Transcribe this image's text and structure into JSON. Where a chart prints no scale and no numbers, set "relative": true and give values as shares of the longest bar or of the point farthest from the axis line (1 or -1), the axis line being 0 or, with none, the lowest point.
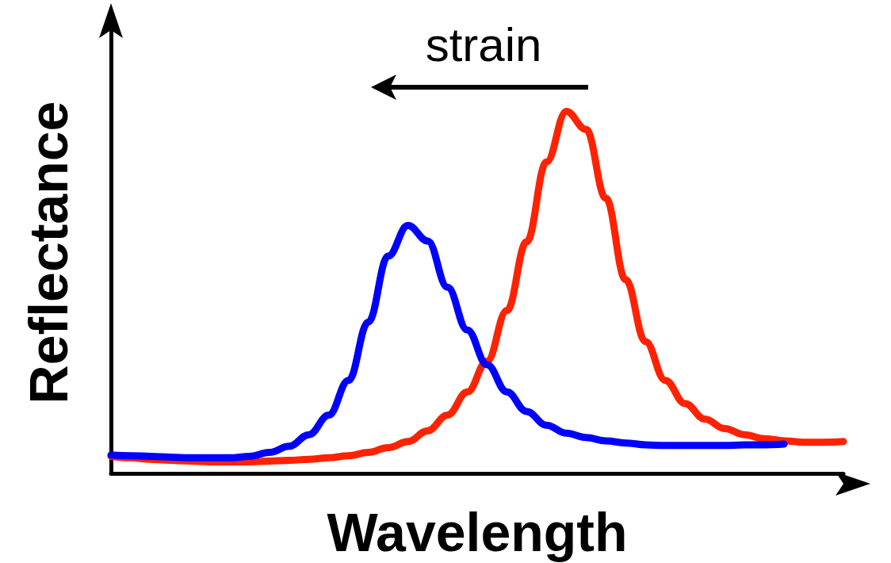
{
  "chart_data": {
    "type": "line",
    "relative": true,
    "xlabel": "Wavelength",
    "ylabel": "Reflectance",
    "annotations": [
      "strain"
    ],
    "marker": "none",
    "line_style": "solid",
    "categories": [
      null,
      null,
      null,
      null,
      null,
      null,
      null,
      null,
      null,
      null,
      null,
      null,
      null,
      null,
      null,
      null,
      null,
      null,
      null,
      null,
      null,
      null,
      null,
      null,
      null,
      null,
      null,
      null,
      null,
      null,
      null,
      null,
      null,
      null,
      null,
      null,
      null,
      null
    ],
    "series": [
      {
        "color": "#ff2200",
        "values": [
          0.047,
          0.043,
          0.039,
          0.036,
          0.034,
          0.032,
          0.032,
          0.032,
          0.034,
          0.036,
          0.039,
          0.043,
          0.049,
          0.058,
          0.071,
          0.088,
          0.118,
          0.161,
          0.225,
          0.31,
          0.45,
          0.64,
          0.86,
          1,
          0.95,
          0.76,
          0.535,
          0.364,
          0.257,
          0.193,
          0.15,
          0.124,
          0.107,
          0.096,
          0.09,
          0.086,
          0.086,
          0.088
        ]
      },
      {
        "color": "#0000ff",
        "values": [
          0.051,
          0.049,
          0.047,
          0.045,
          0.043,
          0.043,
          0.043,
          0.047,
          0.058,
          0.075,
          0.107,
          0.161,
          0.257,
          0.418,
          0.6,
          0.685,
          0.642,
          0.514,
          0.396,
          0.3,
          0.225,
          0.171,
          0.133,
          0.111,
          0.099,
          0.09,
          0.084,
          0.079,
          0.077,
          0.077,
          0.077,
          0.077,
          0.079,
          0.079,
          0.081,
          null,
          null,
          null
        ]
      }
    ]
  }
}
